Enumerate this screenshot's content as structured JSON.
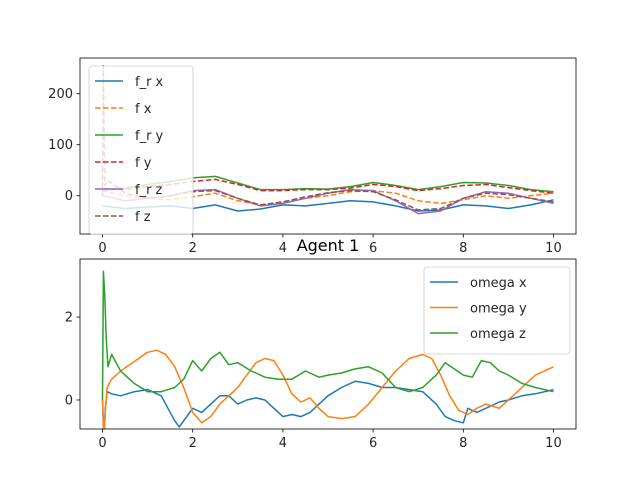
{
  "chart_data": [
    {
      "type": "line",
      "title": "",
      "xlabel": "",
      "ylabel": "",
      "xlim": [
        -0.5,
        10.5
      ],
      "ylim": [
        -75,
        270
      ],
      "xticks": [
        0,
        2,
        4,
        6,
        8,
        10
      ],
      "yticks": [
        0,
        100,
        200
      ],
      "grid": false,
      "legend_position": "upper-left",
      "series": [
        {
          "name": "f_r x",
          "color": "#1f77b4",
          "dash": "solid",
          "x": [
            0,
            0.5,
            1,
            1.5,
            2,
            2.5,
            3,
            3.5,
            4,
            4.5,
            5,
            5.5,
            6,
            6.5,
            7,
            7.5,
            8,
            8.5,
            9,
            9.5,
            10
          ],
          "y": [
            -20,
            -25,
            -22,
            -20,
            -25,
            -18,
            -30,
            -26,
            -18,
            -20,
            -15,
            -10,
            -12,
            -20,
            -30,
            -28,
            -18,
            -20,
            -25,
            -18,
            -8
          ]
        },
        {
          "name": "f x",
          "color": "#ff7f0e",
          "dash": "dashed",
          "x": [
            0,
            0.5,
            1,
            1.5,
            2,
            2.5,
            3,
            3.5,
            4,
            4.5,
            5,
            5.5,
            6,
            6.5,
            7,
            7.5,
            8,
            8.5,
            9,
            9.5,
            10
          ],
          "y": [
            10,
            0,
            -5,
            -8,
            -2,
            5,
            -10,
            -18,
            -12,
            -5,
            0,
            8,
            10,
            5,
            -10,
            -15,
            -8,
            0,
            -5,
            0,
            5
          ]
        },
        {
          "name": "f_r y",
          "color": "#2ca02c",
          "dash": "solid",
          "x": [
            0,
            0.5,
            1,
            1.5,
            2,
            2.5,
            3,
            3.5,
            4,
            4.5,
            5,
            5.5,
            6,
            6.5,
            7,
            7.5,
            8,
            8.5,
            9,
            9.5,
            10
          ],
          "y": [
            10,
            15,
            22,
            28,
            35,
            38,
            25,
            12,
            12,
            14,
            13,
            18,
            26,
            20,
            12,
            18,
            26,
            25,
            20,
            12,
            8
          ]
        },
        {
          "name": "f y",
          "color": "#d62728",
          "dash": "dashed",
          "x": [
            0,
            0.5,
            1,
            1.5,
            2,
            2.5,
            3,
            3.5,
            4,
            4.5,
            5,
            5.5,
            6,
            6.5,
            7,
            7.5,
            8,
            8.5,
            9,
            9.5,
            10
          ],
          "y": [
            15,
            12,
            18,
            22,
            28,
            32,
            22,
            10,
            10,
            12,
            12,
            15,
            22,
            18,
            10,
            14,
            20,
            22,
            16,
            10,
            5
          ]
        },
        {
          "name": "f_r z",
          "color": "#9467bd",
          "dash": "solid",
          "x": [
            0,
            0.5,
            1,
            1.5,
            2,
            2.5,
            3,
            3.5,
            4,
            4.5,
            5,
            5.5,
            6,
            6.5,
            7,
            7.5,
            8,
            8.5,
            9,
            9.5,
            10
          ],
          "y": [
            0,
            -10,
            -5,
            0,
            10,
            12,
            -5,
            -20,
            -15,
            -5,
            5,
            12,
            10,
            -10,
            -35,
            -30,
            -5,
            8,
            5,
            -5,
            -15
          ]
        },
        {
          "name": "f z",
          "color": "#8c564b",
          "dash": "dashed",
          "x": [
            0,
            0.02,
            0.05,
            0.1,
            0.2,
            0.5,
            1,
            1.5,
            2,
            2.5,
            3,
            3.5,
            4,
            4.5,
            5,
            5.5,
            6,
            6.5,
            7,
            7.5,
            8,
            8.5,
            9,
            9.5,
            10
          ],
          "y": [
            0,
            255,
            20,
            30,
            25,
            5,
            -5,
            0,
            8,
            10,
            -5,
            -18,
            -12,
            -2,
            6,
            10,
            8,
            -8,
            -28,
            -25,
            -5,
            5,
            2,
            -5,
            -12
          ]
        }
      ]
    },
    {
      "type": "line",
      "title": "Agent 1",
      "xlabel": "",
      "ylabel": "",
      "xlim": [
        -0.5,
        10.5
      ],
      "ylim": [
        -0.7,
        3.4
      ],
      "xticks": [
        0,
        2,
        4,
        6,
        8,
        10
      ],
      "yticks": [
        0,
        2
      ],
      "grid": false,
      "legend_position": "upper-right",
      "series": [
        {
          "name": "omega x",
          "color": "#1f77b4",
          "dash": "solid",
          "x": [
            0,
            0.03,
            0.06,
            0.1,
            0.2,
            0.4,
            0.7,
            1.0,
            1.3,
            1.6,
            1.7,
            1.9,
            2.0,
            2.2,
            2.4,
            2.6,
            2.8,
            3.0,
            3.2,
            3.4,
            3.6,
            3.8,
            4.0,
            4.2,
            4.4,
            4.6,
            4.8,
            5.0,
            5.3,
            5.6,
            5.9,
            6.2,
            6.5,
            6.8,
            7.1,
            7.4,
            7.6,
            7.8,
            8.0,
            8.1,
            8.3,
            8.5,
            8.8,
            9.0,
            9.3,
            9.6,
            10.0
          ],
          "y": [
            0,
            -1.0,
            -0.2,
            0.2,
            0.15,
            0.1,
            0.2,
            0.25,
            0.1,
            -0.5,
            -0.65,
            -0.35,
            -0.2,
            -0.3,
            -0.1,
            0.1,
            0.1,
            -0.1,
            0.0,
            0.05,
            0.0,
            -0.2,
            -0.4,
            -0.35,
            -0.4,
            -0.3,
            -0.1,
            0.1,
            0.3,
            0.45,
            0.4,
            0.3,
            0.3,
            0.25,
            0.2,
            -0.1,
            -0.4,
            -0.5,
            -0.55,
            -0.2,
            -0.3,
            -0.2,
            -0.05,
            0.0,
            0.1,
            0.15,
            0.25
          ]
        },
        {
          "name": "omega y",
          "color": "#ff7f0e",
          "dash": "solid",
          "x": [
            0,
            0.03,
            0.06,
            0.1,
            0.2,
            0.4,
            0.6,
            0.8,
            1.0,
            1.2,
            1.4,
            1.6,
            1.8,
            2.0,
            2.2,
            2.4,
            2.6,
            2.8,
            3.0,
            3.2,
            3.4,
            3.6,
            3.8,
            4.0,
            4.2,
            4.4,
            4.6,
            4.8,
            5.0,
            5.3,
            5.6,
            5.9,
            6.2,
            6.5,
            6.8,
            7.1,
            7.3,
            7.5,
            7.7,
            7.9,
            8.1,
            8.3,
            8.5,
            8.8,
            9.0,
            9.3,
            9.6,
            10.0
          ],
          "y": [
            0,
            -0.9,
            -0.3,
            0.3,
            0.5,
            0.7,
            0.85,
            1.0,
            1.15,
            1.2,
            1.1,
            0.8,
            0.3,
            -0.3,
            -0.55,
            -0.4,
            -0.1,
            0.1,
            0.3,
            0.6,
            0.9,
            1.0,
            0.95,
            0.6,
            0.15,
            -0.05,
            0.05,
            -0.2,
            -0.4,
            -0.45,
            -0.4,
            -0.1,
            0.3,
            0.7,
            1.0,
            1.1,
            1.0,
            0.6,
            0.1,
            -0.25,
            -0.35,
            -0.2,
            -0.1,
            -0.2,
            0.0,
            0.3,
            0.6,
            0.8
          ]
        },
        {
          "name": "omega z",
          "color": "#2ca02c",
          "dash": "solid",
          "x": [
            0,
            0.02,
            0.05,
            0.08,
            0.12,
            0.2,
            0.4,
            0.7,
            1.0,
            1.3,
            1.6,
            1.8,
            2.0,
            2.2,
            2.4,
            2.6,
            2.8,
            3.0,
            3.3,
            3.6,
            3.9,
            4.2,
            4.5,
            4.8,
            5.0,
            5.3,
            5.6,
            5.9,
            6.2,
            6.5,
            6.8,
            7.1,
            7.4,
            7.6,
            7.8,
            8.0,
            8.2,
            8.4,
            8.6,
            8.8,
            9.0,
            9.3,
            9.6,
            10.0
          ],
          "y": [
            0,
            3.1,
            2.5,
            1.5,
            0.8,
            1.1,
            0.7,
            0.4,
            0.2,
            0.2,
            0.3,
            0.5,
            0.95,
            0.7,
            1.0,
            1.15,
            0.85,
            0.9,
            0.7,
            0.55,
            0.5,
            0.5,
            0.7,
            0.55,
            0.6,
            0.65,
            0.75,
            0.8,
            0.65,
            0.3,
            0.2,
            0.3,
            0.6,
            0.9,
            0.75,
            0.6,
            0.55,
            0.95,
            0.9,
            0.7,
            0.6,
            0.4,
            0.3,
            0.2
          ]
        }
      ]
    }
  ]
}
